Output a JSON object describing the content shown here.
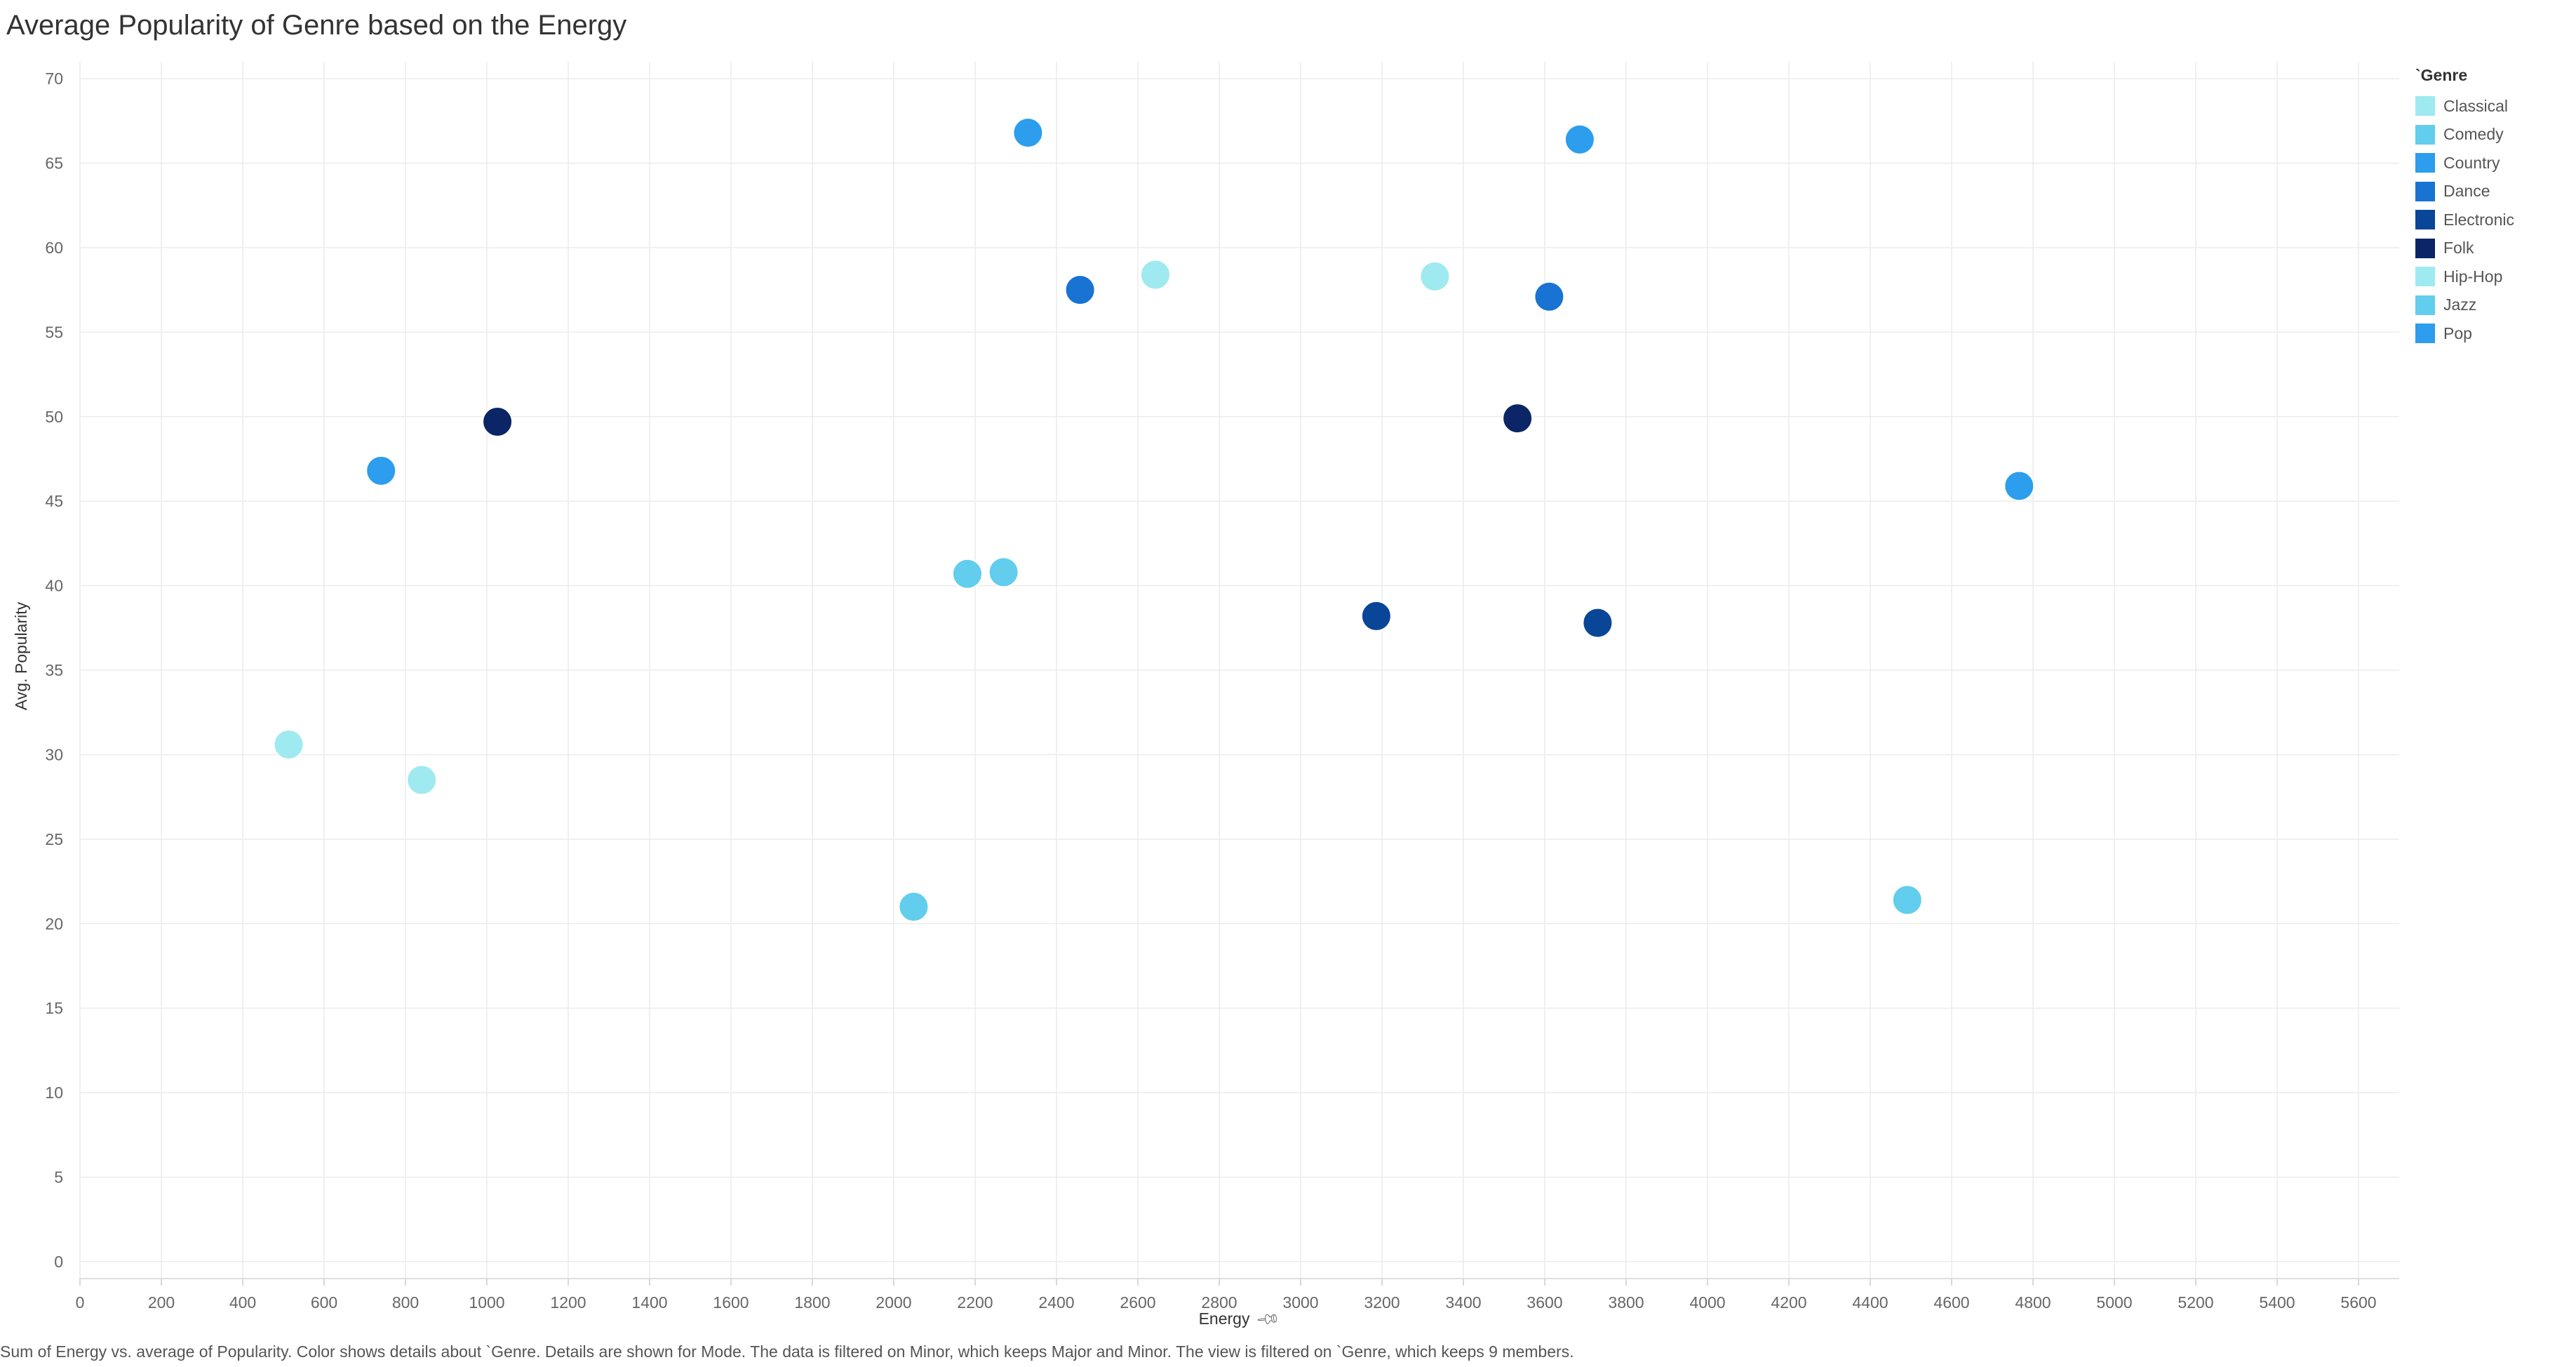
{
  "header": {
    "title": "Average Popularity of Genre based on the Energy"
  },
  "legend": {
    "title": "`Genre",
    "items": [
      {
        "label": "Classical",
        "color": "#9eeaf0"
      },
      {
        "label": "Comedy",
        "color": "#62cdec"
      },
      {
        "label": "Country",
        "color": "#2d9ded"
      },
      {
        "label": "Dance",
        "color": "#1873d3"
      },
      {
        "label": "Electronic",
        "color": "#0a4698"
      },
      {
        "label": "Folk",
        "color": "#0b2566"
      },
      {
        "label": "Hip-Hop",
        "color": "#9eeaf0"
      },
      {
        "label": "Jazz",
        "color": "#62cdec"
      },
      {
        "label": "Pop",
        "color": "#2d9ded"
      }
    ]
  },
  "footer": {
    "caption": "Sum of Energy vs. average of Popularity.  Color shows details about `Genre.  Details are shown for Mode. The data is filtered on Minor, which keeps Major and Minor. The view is filtered on `Genre, which keeps 9 members."
  },
  "icons": {
    "xlabel_pin": "pin-icon"
  },
  "chart_data": {
    "type": "scatter",
    "title": "Average Popularity of Genre based on the Energy",
    "xlabel": "Energy",
    "ylabel": "Avg. Popularity",
    "xlim": [
      0,
      5700
    ],
    "ylim": [
      -1,
      71
    ],
    "xticks": [
      0,
      200,
      400,
      600,
      800,
      1000,
      1200,
      1400,
      1600,
      1800,
      2000,
      2200,
      2400,
      2600,
      2800,
      3000,
      3200,
      3400,
      3600,
      3800,
      4000,
      4200,
      4400,
      4600,
      4800,
      5000,
      5200,
      5400,
      5600
    ],
    "yticks": [
      0,
      5,
      10,
      15,
      20,
      25,
      30,
      35,
      40,
      45,
      50,
      55,
      60,
      65,
      70
    ],
    "grid": true,
    "legend_position": "right",
    "points": [
      {
        "genre": "Classical",
        "x": 3330,
        "y": 58.3
      },
      {
        "genre": "Classical",
        "x": 513,
        "y": 30.6
      },
      {
        "genre": "Comedy",
        "x": 2270,
        "y": 40.8
      },
      {
        "genre": "Comedy",
        "x": 4491,
        "y": 21.4
      },
      {
        "genre": "Country",
        "x": 740,
        "y": 46.8
      },
      {
        "genre": "Country",
        "x": 3686,
        "y": 66.4
      },
      {
        "genre": "Dance",
        "x": 3611,
        "y": 57.1
      },
      {
        "genre": "Dance",
        "x": 2458,
        "y": 57.5
      },
      {
        "genre": "Electronic",
        "x": 3186,
        "y": 38.2
      },
      {
        "genre": "Electronic",
        "x": 3730,
        "y": 37.8
      },
      {
        "genre": "Folk",
        "x": 1026,
        "y": 49.7
      },
      {
        "genre": "Folk",
        "x": 3533,
        "y": 49.9
      },
      {
        "genre": "Hip-Hop",
        "x": 2643,
        "y": 58.4
      },
      {
        "genre": "Hip-Hop",
        "x": 840,
        "y": 28.5
      },
      {
        "genre": "Jazz",
        "x": 2181,
        "y": 40.7
      },
      {
        "genre": "Jazz",
        "x": 2049,
        "y": 21.0
      },
      {
        "genre": "Pop",
        "x": 2330,
        "y": 66.8
      },
      {
        "genre": "Pop",
        "x": 4766,
        "y": 45.9
      }
    ]
  }
}
